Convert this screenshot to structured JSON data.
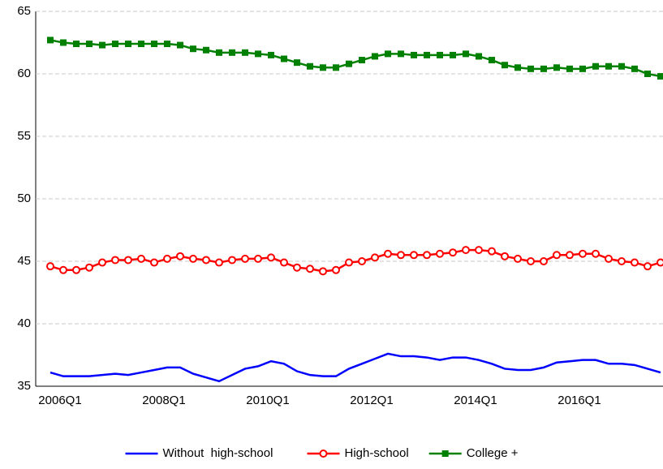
{
  "chart_data": {
    "type": "line",
    "categories": [
      "2006Q1",
      null,
      null,
      null,
      null,
      null,
      null,
      null,
      "2008Q1",
      null,
      null,
      null,
      null,
      null,
      null,
      null,
      "2010Q1",
      null,
      null,
      null,
      null,
      null,
      null,
      null,
      "2012Q1",
      null,
      null,
      null,
      null,
      null,
      null,
      null,
      "2014Q1",
      null,
      null,
      null,
      null,
      null,
      null,
      null,
      "2016Q1",
      null,
      null,
      null,
      null,
      null,
      null,
      null
    ],
    "series": [
      {
        "name": "Without  high-school",
        "color": "#0000ff",
        "marker": "none",
        "values": [
          36.1,
          35.8,
          35.8,
          35.8,
          35.9,
          36.0,
          35.9,
          36.1,
          36.3,
          36.5,
          36.5,
          36.0,
          35.7,
          35.4,
          35.9,
          36.4,
          36.6,
          37.0,
          36.8,
          36.2,
          35.9,
          35.8,
          35.8,
          36.4,
          36.8,
          37.2,
          37.6,
          37.4,
          37.4,
          37.3,
          37.1,
          37.3,
          37.3,
          37.1,
          36.8,
          36.4,
          36.3,
          36.3,
          36.5,
          36.9,
          37.0,
          37.1,
          37.1,
          36.8,
          36.8,
          36.7,
          36.4,
          36.1
        ]
      },
      {
        "name": "High-school",
        "color": "#ff0000",
        "marker": "circle",
        "values": [
          44.6,
          44.3,
          44.3,
          44.5,
          44.9,
          45.1,
          45.1,
          45.2,
          44.9,
          45.2,
          45.4,
          45.2,
          45.1,
          44.9,
          45.1,
          45.2,
          45.2,
          45.3,
          44.9,
          44.5,
          44.4,
          44.2,
          44.3,
          44.9,
          45.0,
          45.3,
          45.6,
          45.5,
          45.5,
          45.5,
          45.6,
          45.7,
          45.9,
          45.9,
          45.8,
          45.4,
          45.2,
          45.0,
          45.0,
          45.5,
          45.5,
          45.6,
          45.6,
          45.2,
          45.0,
          44.9,
          44.6,
          44.9
        ]
      },
      {
        "name": "College +",
        "color": "#008000",
        "marker": "square",
        "values": [
          62.7,
          62.5,
          62.4,
          62.4,
          62.3,
          62.4,
          62.4,
          62.4,
          62.4,
          62.4,
          62.3,
          62.0,
          61.9,
          61.7,
          61.7,
          61.7,
          61.6,
          61.5,
          61.2,
          60.9,
          60.6,
          60.5,
          60.5,
          60.8,
          61.1,
          61.4,
          61.6,
          61.6,
          61.5,
          61.5,
          61.5,
          61.5,
          61.6,
          61.4,
          61.1,
          60.7,
          60.5,
          60.4,
          60.4,
          60.5,
          60.4,
          60.4,
          60.6,
          60.6,
          60.6,
          60.4,
          60.0,
          59.8
        ]
      }
    ],
    "ylim": [
      35,
      65
    ],
    "yticks": [
      35,
      40,
      45,
      50,
      55,
      60,
      65
    ],
    "grid": true,
    "legend": "bottom"
  }
}
